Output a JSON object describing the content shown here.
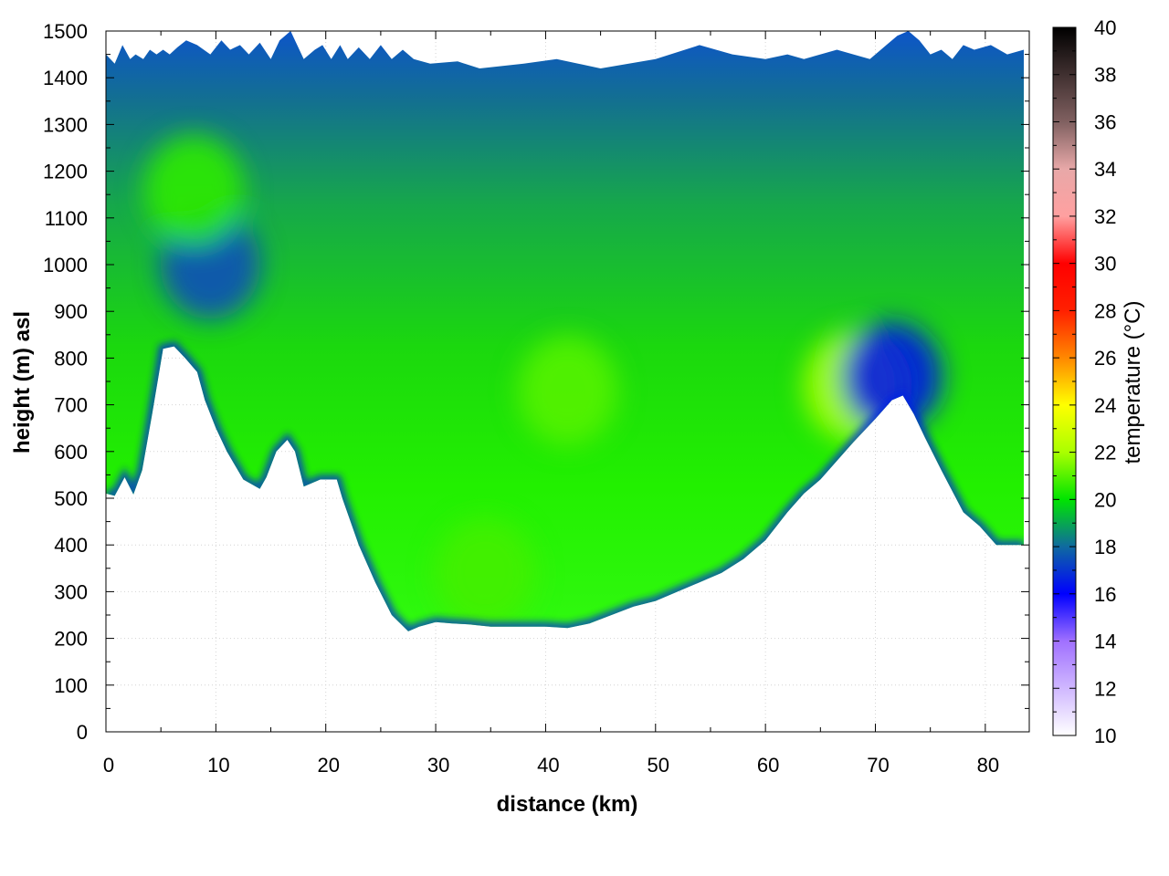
{
  "chart_data": {
    "type": "heatmap",
    "title": "",
    "xlabel": "distance (km)",
    "ylabel": "height (m) asl",
    "xlim": [
      0,
      84
    ],
    "ylim": [
      0,
      1500
    ],
    "x_ticks": [
      0,
      10,
      20,
      30,
      40,
      50,
      60,
      70,
      80
    ],
    "y_ticks": [
      0,
      100,
      200,
      300,
      400,
      500,
      600,
      700,
      800,
      900,
      1000,
      1100,
      1200,
      1300,
      1400,
      1500
    ],
    "grid": true,
    "colorbar": {
      "label": "temperature (°C)",
      "range": [
        10,
        40
      ],
      "ticks": [
        10,
        12,
        14,
        16,
        18,
        20,
        22,
        24,
        26,
        28,
        30,
        32,
        34,
        36,
        38,
        40
      ],
      "colors": [
        {
          "value": 10,
          "color": "#ffffff"
        },
        {
          "value": 14,
          "color": "#a070ff"
        },
        {
          "value": 16,
          "color": "#0000ff"
        },
        {
          "value": 18,
          "color": "#0f6aa0"
        },
        {
          "value": 20,
          "color": "#00e400"
        },
        {
          "value": 22,
          "color": "#aaff00"
        },
        {
          "value": 24,
          "color": "#ffff00"
        },
        {
          "value": 26,
          "color": "#ff8800"
        },
        {
          "value": 28,
          "color": "#ff2000"
        },
        {
          "value": 30,
          "color": "#ff0000"
        },
        {
          "value": 32,
          "color": "#ffa0a0"
        },
        {
          "value": 34,
          "color": "#e8a8a8"
        },
        {
          "value": 36,
          "color": "#806060"
        },
        {
          "value": 38,
          "color": "#403030"
        },
        {
          "value": 40,
          "color": "#000000"
        }
      ]
    },
    "terrain_profile": {
      "distance_km": [
        0,
        0.8,
        1.7,
        2.5,
        3.3,
        4.2,
        5.2,
        6.2,
        7.2,
        8.3,
        9,
        10,
        11,
        12.5,
        14,
        14.6,
        15.5,
        16.5,
        17.2,
        18,
        18.5,
        19.5,
        21,
        21.5,
        23,
        24.5,
        26,
        27.5,
        28.5,
        30,
        31.5,
        33,
        35,
        37,
        40,
        42,
        44,
        46,
        48,
        50,
        52,
        54,
        56,
        58,
        60,
        62,
        63.5,
        65,
        66.5,
        68,
        70,
        71.5,
        72.5,
        73.5,
        74.5,
        76,
        78,
        79.5,
        81,
        82,
        83.5
      ],
      "height_m": [
        510,
        505,
        545,
        508,
        560,
        680,
        820,
        825,
        800,
        770,
        710,
        650,
        600,
        540,
        520,
        545,
        600,
        625,
        600,
        525,
        530,
        540,
        540,
        500,
        400,
        320,
        250,
        215,
        225,
        235,
        232,
        230,
        225,
        225,
        225,
        222,
        232,
        250,
        268,
        280,
        300,
        320,
        340,
        370,
        410,
        470,
        510,
        540,
        580,
        620,
        670,
        710,
        720,
        680,
        630,
        560,
        470,
        440,
        400,
        400,
        400
      ]
    },
    "top_profile": {
      "distance_km": [
        0,
        0.8,
        1.5,
        2.2,
        2.7,
        3.4,
        4,
        4.6,
        5.2,
        5.8,
        6.5,
        7.3,
        8.3,
        9.5,
        10.5,
        11.3,
        12.2,
        13,
        14,
        15,
        15.8,
        16.8,
        18,
        19,
        19.7,
        20.5,
        21.3,
        22,
        23,
        24,
        25,
        26,
        27,
        28,
        29.5,
        32,
        34,
        38,
        41,
        45,
        50,
        54,
        57,
        60,
        62,
        63.5,
        65,
        66.5,
        68,
        69.5,
        71,
        72,
        73,
        74,
        75,
        76,
        77,
        78,
        79,
        80.5,
        82,
        83.5
      ],
      "height_m": [
        1450,
        1430,
        1470,
        1440,
        1450,
        1440,
        1460,
        1450,
        1460,
        1450,
        1465,
        1480,
        1470,
        1450,
        1480,
        1460,
        1470,
        1450,
        1475,
        1440,
        1480,
        1500,
        1440,
        1460,
        1470,
        1440,
        1470,
        1440,
        1465,
        1440,
        1470,
        1440,
        1460,
        1440,
        1430,
        1435,
        1420,
        1430,
        1440,
        1420,
        1440,
        1470,
        1450,
        1440,
        1450,
        1440,
        1450,
        1460,
        1450,
        1440,
        1470,
        1490,
        1500,
        1480,
        1450,
        1460,
        1440,
        1470,
        1460,
        1470,
        1450,
        1460
      ]
    },
    "field_features": [
      {
        "description": "cool pocket",
        "distance_km": 9.5,
        "height_m": 1000,
        "value": 17.5
      },
      {
        "description": "warm pocket",
        "distance_km": 8,
        "height_m": 1160,
        "value": 20.5
      },
      {
        "description": "warm pocket",
        "distance_km": 68,
        "height_m": 740,
        "value": 22
      },
      {
        "description": "warm pocket",
        "distance_km": 42,
        "height_m": 730,
        "value": 21
      },
      {
        "description": "warm pocket",
        "distance_km": 34.5,
        "height_m": 340,
        "value": 20.8
      },
      {
        "description": "cool band above terrain near 70 km",
        "distance_km": 71.5,
        "height_m": 760,
        "value": 16.5
      }
    ]
  }
}
